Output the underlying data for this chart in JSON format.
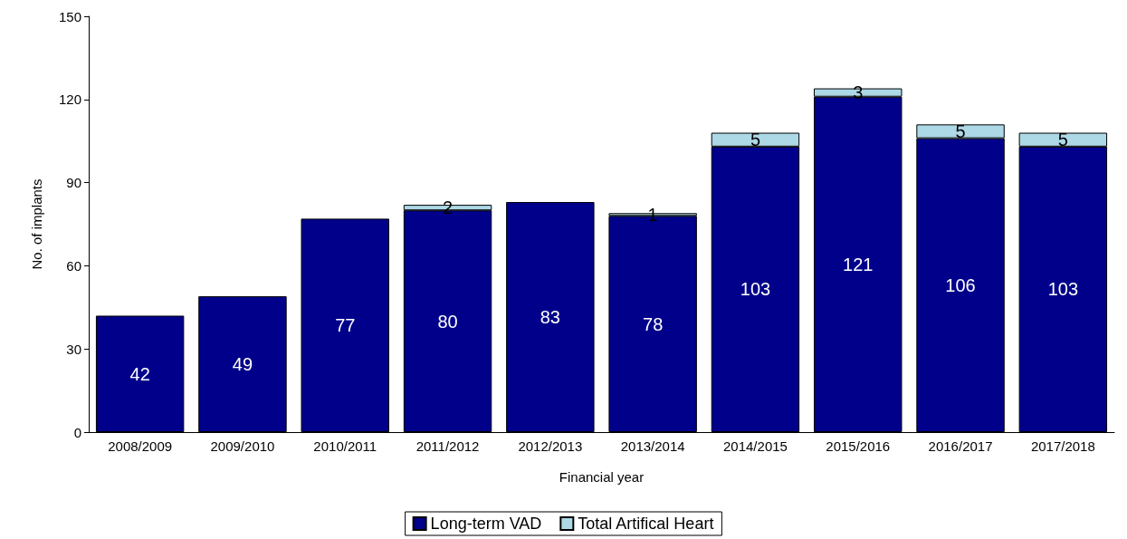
{
  "chart_data": {
    "type": "bar",
    "stacked": true,
    "xlabel": "Financial year",
    "ylabel": "No. of implants",
    "categories": [
      "2008/2009",
      "2009/2010",
      "2010/2011",
      "2011/2012",
      "2012/2013",
      "2013/2014",
      "2014/2015",
      "2015/2016",
      "2016/2017",
      "2017/2018"
    ],
    "series": [
      {
        "name": "Long-term VAD",
        "color": "#00008b",
        "values": [
          42,
          49,
          77,
          80,
          83,
          78,
          103,
          121,
          106,
          103
        ]
      },
      {
        "name": "Total Artifical Heart",
        "color": "#add8e6",
        "values": [
          null,
          null,
          null,
          2,
          null,
          1,
          5,
          3,
          5,
          5
        ]
      }
    ],
    "ylim": [
      0,
      150
    ],
    "yticks": [
      0,
      30,
      60,
      90,
      120,
      150
    ],
    "grid": false,
    "legend": "bottom",
    "data_labels": true
  }
}
